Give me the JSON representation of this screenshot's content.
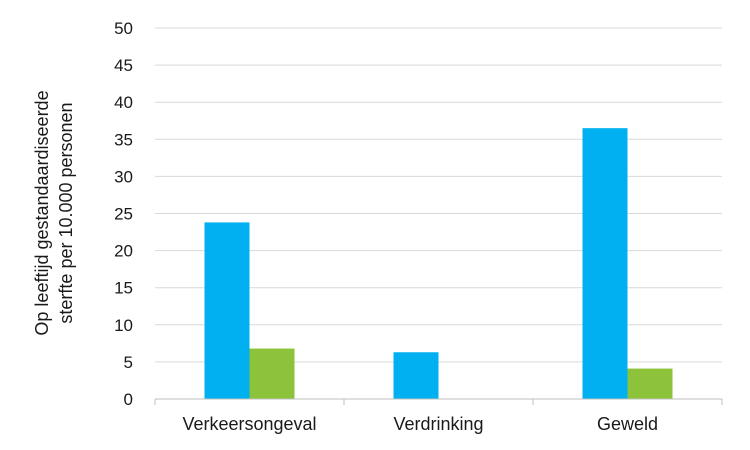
{
  "chart_data": {
    "type": "bar",
    "title": "",
    "xlabel": "",
    "ylabel_lines": [
      "Op leeftijd gestandaardiseerde",
      "sterfte per 10.000 personen"
    ],
    "categories": [
      "Verkeersongeval",
      "Verdrinking",
      "Geweld"
    ],
    "series": [
      {
        "values": [
          23.8,
          6.3,
          36.5
        ],
        "color": "#00b0f0"
      },
      {
        "values": [
          6.8,
          0,
          4.1
        ],
        "color": "#8dc33a"
      }
    ],
    "ylim": [
      0,
      50
    ],
    "yticks": [
      0,
      5,
      10,
      15,
      20,
      25,
      30,
      35,
      40,
      45,
      50
    ],
    "grid": true,
    "legend": "none"
  }
}
